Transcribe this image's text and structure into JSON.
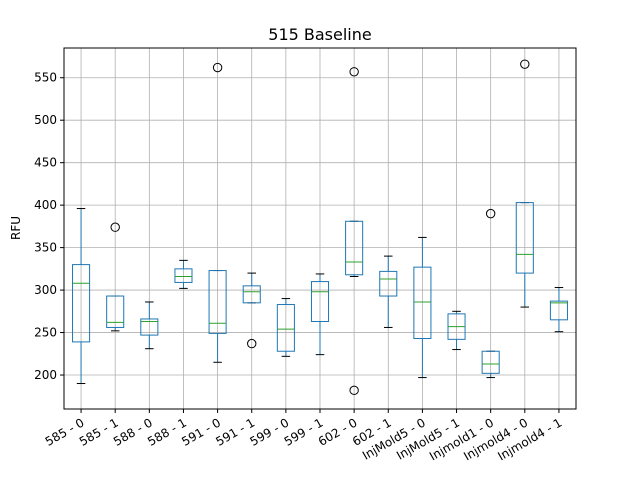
{
  "chart_data": {
    "type": "box",
    "title": "515 Baseline",
    "ylabel": "RFU",
    "xlabel": "",
    "ylim": [
      160,
      585
    ],
    "yticks": [
      200,
      250,
      300,
      350,
      400,
      450,
      500,
      550
    ],
    "grid": true,
    "colors": {
      "box": "#1f77b4",
      "median": "#2ca02c",
      "whisker": "#1f77b4",
      "cap": "#000000",
      "flier": "#000000",
      "grid": "#b0b0b0"
    },
    "categories": [
      "585 - 0",
      "585 - 1",
      "588 - 0",
      "588 - 1",
      "591 - 0",
      "591 - 1",
      "599 - 0",
      "599 - 1",
      "602 - 0",
      "602 - 1",
      "InjMold5 - 0",
      "InjMold5 - 1",
      "Injmold1 - 0",
      "Injmold4 - 0",
      "Injmold4 - 1"
    ],
    "boxes": [
      {
        "whislo": 190,
        "q1": 239,
        "med": 308,
        "q3": 330,
        "whishi": 396,
        "fliers": []
      },
      {
        "whislo": 252,
        "q1": 256,
        "med": 262,
        "q3": 293,
        "whishi": 293,
        "fliers": [
          374
        ]
      },
      {
        "whislo": 231,
        "q1": 247,
        "med": 263,
        "q3": 266,
        "whishi": 286,
        "fliers": []
      },
      {
        "whislo": 302,
        "q1": 309,
        "med": 316,
        "q3": 325,
        "whishi": 335,
        "fliers": []
      },
      {
        "whislo": 215,
        "q1": 249,
        "med": 261,
        "q3": 323,
        "whishi": 323,
        "fliers": [
          562
        ]
      },
      {
        "whislo": 285,
        "q1": 285,
        "med": 298,
        "q3": 305,
        "whishi": 320,
        "fliers": [
          237
        ]
      },
      {
        "whislo": 222,
        "q1": 228,
        "med": 254,
        "q3": 283,
        "whishi": 290,
        "fliers": []
      },
      {
        "whislo": 224,
        "q1": 263,
        "med": 298,
        "q3": 310,
        "whishi": 319,
        "fliers": []
      },
      {
        "whislo": 316,
        "q1": 318,
        "med": 333,
        "q3": 381,
        "whishi": 381,
        "fliers": [
          557,
          182
        ]
      },
      {
        "whislo": 256,
        "q1": 293,
        "med": 313,
        "q3": 322,
        "whishi": 340,
        "fliers": []
      },
      {
        "whislo": 197,
        "q1": 243,
        "med": 286,
        "q3": 327,
        "whishi": 362,
        "fliers": []
      },
      {
        "whislo": 230,
        "q1": 242,
        "med": 257,
        "q3": 272,
        "whishi": 275,
        "fliers": []
      },
      {
        "whislo": 197,
        "q1": 202,
        "med": 213,
        "q3": 228,
        "whishi": 228,
        "fliers": [
          390
        ]
      },
      {
        "whislo": 280,
        "q1": 320,
        "med": 342,
        "q3": 403,
        "whishi": 403,
        "fliers": [
          566
        ]
      },
      {
        "whislo": 251,
        "q1": 265,
        "med": 285,
        "q3": 287,
        "whishi": 303,
        "fliers": []
      }
    ]
  }
}
